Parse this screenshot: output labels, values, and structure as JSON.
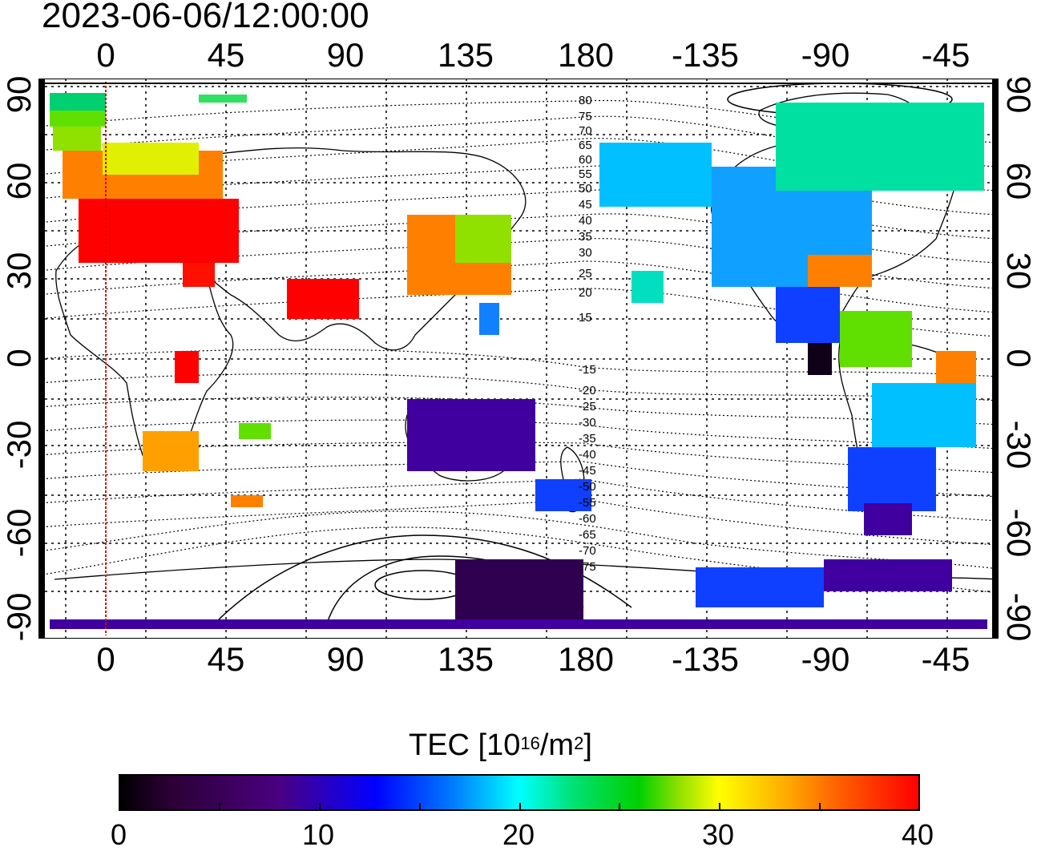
{
  "timestamp": "2023-06-06/12:00:00",
  "lon_labels": [
    "0",
    "45",
    "90",
    "135",
    "180",
    "-135",
    "-90",
    "-45"
  ],
  "lat_labels": [
    "90",
    "60",
    "30",
    "0",
    "-30",
    "-60",
    "-90"
  ],
  "mlat_labels": [
    "80",
    "75",
    "70",
    "65",
    "60",
    "55",
    "50",
    "45",
    "40",
    "35",
    "30",
    "25",
    "20",
    "15",
    "-15",
    "-20",
    "-25",
    "-30",
    "-35",
    "-40",
    "-45",
    "-50",
    "-55",
    "-60",
    "-65",
    "-70",
    "-75"
  ],
  "colorbar": {
    "title": "TEC  [10",
    "title_sup1": "16",
    "title_mid": "/m",
    "title_sup2": "2",
    "title_end": "]",
    "ticks": [
      "0",
      "10",
      "20",
      "30",
      "40"
    ],
    "colors": [
      "#000000",
      "#4a0082",
      "#0000ff",
      "#00ffff",
      "#00d000",
      "#ffff00",
      "#ff0000"
    ]
  }
}
